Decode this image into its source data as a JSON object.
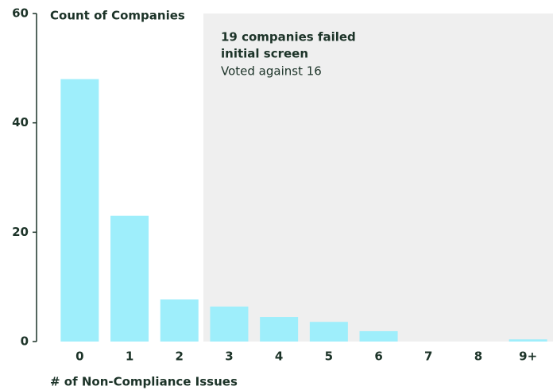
{
  "chart_data": {
    "type": "bar",
    "title": "Count of Companies",
    "x_label": "# of Non-Compliance Issues",
    "categories": [
      "0",
      "1",
      "2",
      "3",
      "4",
      "5",
      "6",
      "7",
      "8",
      "9+"
    ],
    "values": [
      48,
      23,
      7.7,
      6.4,
      4.5,
      3.6,
      1.9,
      0,
      0,
      0.4
    ],
    "color": "#9eeefb",
    "ylim": [
      0,
      60
    ],
    "yticks": [
      0,
      20,
      40,
      60
    ],
    "grid": false,
    "annotation": {
      "title": [
        "19 companies failed",
        "initial screen"
      ],
      "text": "Voted against 16"
    }
  }
}
